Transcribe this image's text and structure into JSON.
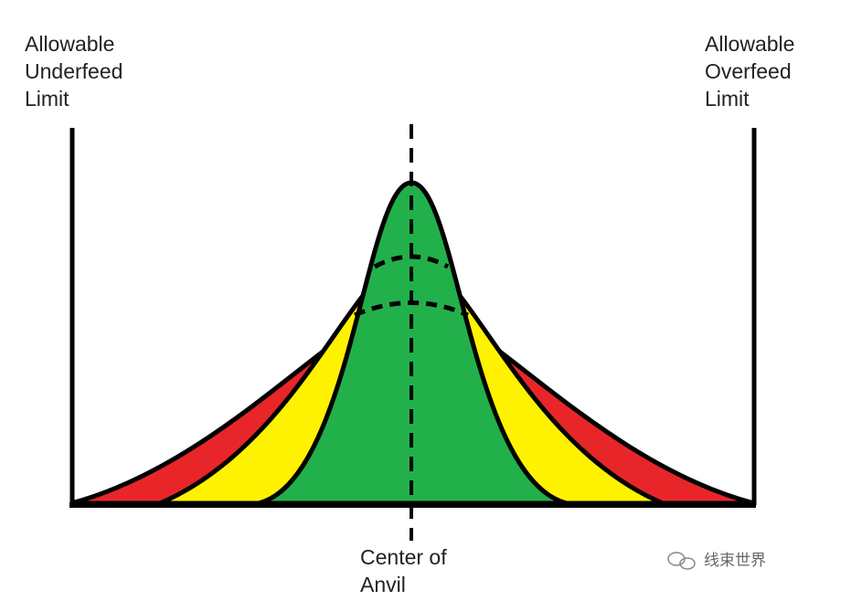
{
  "left_label": [
    "Allowable",
    "Underfeed",
    "Limit"
  ],
  "right_label": [
    "Allowable",
    "Overfeed",
    "Limit"
  ],
  "center_label": [
    "Center of",
    "Anvil"
  ],
  "watermark": "线束世界"
}
